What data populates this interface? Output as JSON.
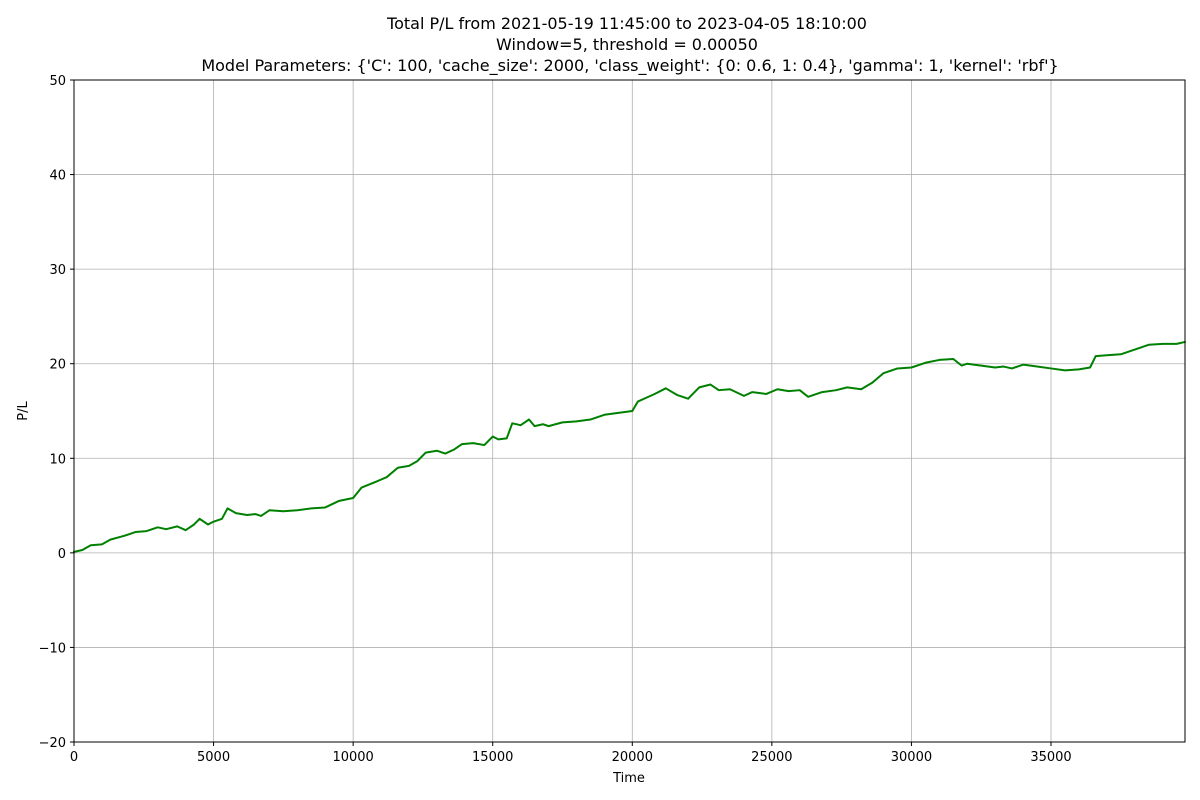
{
  "chart_data": {
    "type": "line",
    "title_lines": [
      "Total P/L from 2021-05-19 11:45:00 to 2023-04-05 18:10:00",
      "Window=5, threshold = 0.00050",
      "Model Parameters: {'C': 100, 'cache_size': 2000, 'class_weight': {0: 0.6, 1: 0.4}, 'gamma': 1, 'kernel': 'rbf'}"
    ],
    "xlabel": "Time",
    "ylabel": "P/L",
    "xlim": [
      0,
      39800
    ],
    "ylim": [
      -20,
      50
    ],
    "grid": true,
    "line_color": "#008000",
    "x_ticks": [
      0,
      5000,
      10000,
      15000,
      20000,
      25000,
      30000,
      35000
    ],
    "y_ticks": [
      -20,
      -10,
      0,
      10,
      20,
      30,
      40,
      50
    ],
    "x_tick_labels": [
      "0",
      "5000",
      "10000",
      "15000",
      "20000",
      "25000",
      "30000",
      "35000"
    ],
    "y_tick_labels": [
      "−20",
      "−10",
      "0",
      "10",
      "20",
      "30",
      "40",
      "50"
    ],
    "series": [
      {
        "x": [
          0,
          300,
          600,
          1000,
          1300,
          1800,
          2200,
          2600,
          3000,
          3300,
          3700,
          4000,
          4300,
          4500,
          4800,
          5000,
          5300,
          5500,
          5800,
          6200,
          6500,
          6700,
          7000,
          7500,
          8000,
          8500,
          9000,
          9500,
          10000,
          10300,
          10800,
          11200,
          11600,
          12000,
          12300,
          12600,
          13000,
          13300,
          13600,
          13900,
          14300,
          14700,
          15000,
          15200,
          15500,
          15700,
          16000,
          16300,
          16500,
          16800,
          17000,
          17500,
          18000,
          18500,
          19000,
          19500,
          20000,
          20200,
          20500,
          20800,
          21200,
          21600,
          22000,
          22400,
          22800,
          23100,
          23500,
          24000,
          24300,
          24800,
          25200,
          25600,
          26000,
          26300,
          26800,
          27300,
          27700,
          28200,
          28600,
          29000,
          29500,
          30000,
          30500,
          31000,
          31500,
          31800,
          32000,
          32500,
          33000,
          33300,
          33600,
          34000,
          34500,
          35000,
          35500,
          36000,
          36400,
          36600,
          37000,
          37500,
          38000,
          38500,
          39000,
          39500,
          39800
        ],
        "y": [
          0.1,
          0.3,
          0.8,
          0.9,
          1.4,
          1.8,
          2.2,
          2.3,
          2.7,
          2.5,
          2.8,
          2.4,
          3.0,
          3.6,
          3.0,
          3.3,
          3.6,
          4.7,
          4.2,
          4.0,
          4.1,
          3.9,
          4.5,
          4.4,
          4.5,
          4.7,
          4.8,
          5.5,
          5.8,
          6.9,
          7.5,
          8.0,
          9.0,
          9.2,
          9.7,
          10.6,
          10.8,
          10.5,
          10.9,
          11.5,
          11.6,
          11.4,
          12.3,
          12.0,
          12.1,
          13.7,
          13.5,
          14.1,
          13.4,
          13.6,
          13.4,
          13.8,
          13.9,
          14.1,
          14.6,
          14.8,
          15.0,
          16.0,
          16.4,
          16.8,
          17.4,
          16.7,
          16.3,
          17.5,
          17.8,
          17.2,
          17.3,
          16.6,
          17.0,
          16.8,
          17.3,
          17.1,
          17.2,
          16.5,
          17.0,
          17.2,
          17.5,
          17.3,
          18.0,
          19.0,
          19.5,
          19.6,
          20.1,
          20.4,
          20.5,
          19.8,
          20.0,
          19.8,
          19.6,
          19.7,
          19.5,
          19.9,
          19.7,
          19.5,
          19.3,
          19.4,
          19.6,
          20.8,
          20.9,
          21.0,
          21.5,
          22.0,
          22.1,
          22.1,
          22.3
        ]
      }
    ]
  }
}
